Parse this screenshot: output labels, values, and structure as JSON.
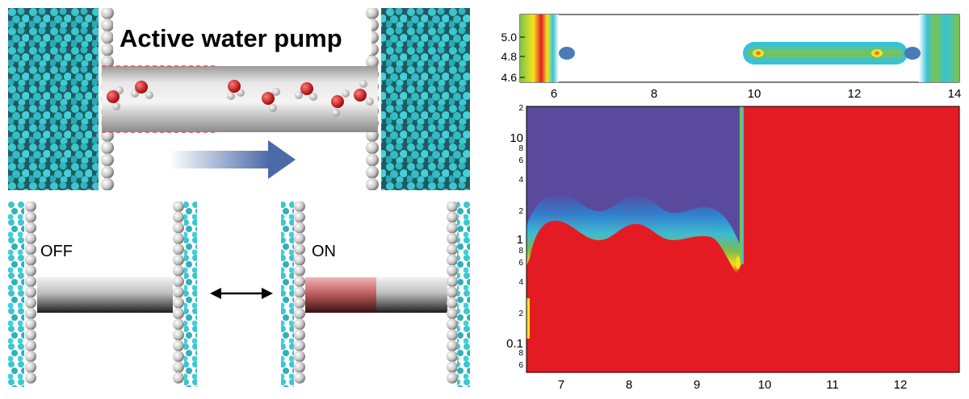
{
  "top_panel": {
    "title": "Active water pump"
  },
  "switch_panel": {
    "off_label": "OFF",
    "on_label": "ON"
  },
  "density_plot": {
    "y_ticks": [
      "5.0",
      "4.8",
      "4.6"
    ],
    "x_ticks": [
      "6",
      "8",
      "10",
      "12",
      "14"
    ]
  },
  "phase_map": {
    "y_major_ticks": [
      "10",
      "1",
      "0.1"
    ],
    "y_minor_ticks": [
      "2",
      "8",
      "6",
      "4",
      "2",
      "8",
      "6",
      "4",
      "2",
      "8",
      "6"
    ],
    "x_ticks": [
      "7",
      "8",
      "9",
      "10",
      "11",
      "12"
    ],
    "colors": {
      "blue": "#5a4a9e",
      "red": "#e51b24",
      "green": "#7ec34a",
      "yellow": "#f4e41c",
      "cyan": "#36c3d8"
    }
  }
}
